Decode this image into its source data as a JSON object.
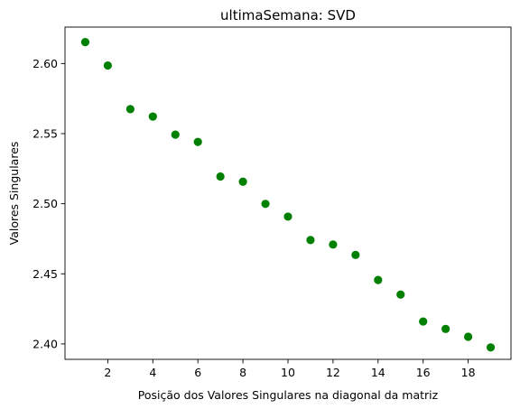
{
  "chart_data": {
    "type": "scatter",
    "title": "ultimaSemana: SVD",
    "xlabel": "Posição dos Valores Singulares na diagonal da matriz",
    "ylabel": "Valores Singulares",
    "xlim": [
      0.1,
      19.9
    ],
    "ylim": [
      2.389,
      2.626
    ],
    "xticks": [
      2,
      4,
      6,
      8,
      10,
      12,
      14,
      16,
      18
    ],
    "xtick_labels": [
      "2",
      "4",
      "6",
      "8",
      "10",
      "12",
      "14",
      "16",
      "18"
    ],
    "yticks": [
      2.4,
      2.45,
      2.5,
      2.55,
      2.6
    ],
    "ytick_labels": [
      "2.40",
      "2.45",
      "2.50",
      "2.55",
      "2.60"
    ],
    "grid": false,
    "legend": "none",
    "series": [
      {
        "name": "singular-values",
        "color": "#008000",
        "x": [
          1,
          2,
          3,
          4,
          5,
          6,
          7,
          8,
          9,
          10,
          11,
          12,
          13,
          14,
          15,
          16,
          17,
          18,
          19
        ],
        "values": [
          2.6153,
          2.5986,
          2.5675,
          2.5622,
          2.5493,
          2.5441,
          2.5194,
          2.5157,
          2.4999,
          2.4908,
          2.4741,
          2.4709,
          2.4635,
          2.4456,
          2.4352,
          2.416,
          2.4107,
          2.4051,
          2.3975
        ]
      }
    ]
  }
}
